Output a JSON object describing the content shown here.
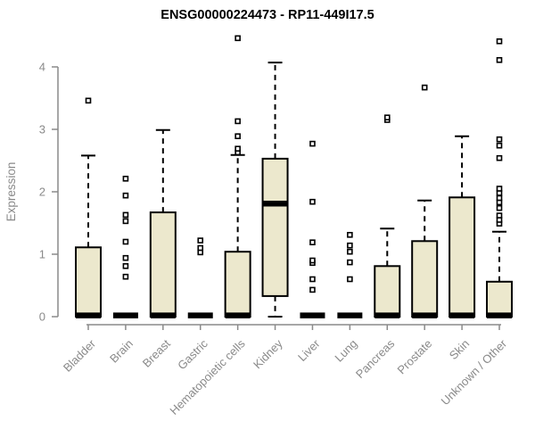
{
  "chart_data": {
    "type": "boxplot",
    "title": "ENSG00000224473 - RP11-449I17.5",
    "ylabel": "Expression",
    "xlabel": "",
    "yticks": [
      0,
      1,
      2,
      3,
      4
    ],
    "ylim": [
      0,
      4.6
    ],
    "grid": false,
    "legend": "none",
    "colors": {
      "box_fill": "#ECE8CD",
      "stroke": "#000000",
      "axis": "#8a8a8a",
      "title": "#000000",
      "background": "#ffffff"
    },
    "categories": [
      "Bladder",
      "Brain",
      "Breast",
      "Gastric",
      "Hematopoietic cells",
      "Kidney",
      "Liver",
      "Lung",
      "Pancreas",
      "Prostate",
      "Skin",
      "Unknown / Other"
    ],
    "series": [
      {
        "low": 0,
        "q1": 0,
        "med": 0.02,
        "q3": 1.11,
        "high": 2.58,
        "outliers": [
          3.46
        ]
      },
      {
        "low": 0,
        "q1": 0,
        "med": 0.02,
        "q3": 0.03,
        "high": 0.03,
        "outliers": [
          0.64,
          0.81,
          0.94,
          1.2,
          1.53,
          1.63,
          1.94,
          2.21
        ]
      },
      {
        "low": 0,
        "q1": 0,
        "med": 0.02,
        "q3": 1.67,
        "high": 2.99,
        "outliers": []
      },
      {
        "low": 0,
        "q1": 0,
        "med": 0.02,
        "q3": 0.03,
        "high": 0.03,
        "outliers": [
          1.03,
          1.1,
          1.22
        ]
      },
      {
        "low": 0,
        "q1": 0,
        "med": 0.02,
        "q3": 1.04,
        "high": 2.59,
        "outliers": [
          2.63,
          2.69,
          2.89,
          3.13,
          4.46
        ]
      },
      {
        "low": 0,
        "q1": 0.33,
        "med": 1.81,
        "q3": 2.53,
        "high": 4.07,
        "outliers": []
      },
      {
        "low": 0,
        "q1": 0,
        "med": 0.02,
        "q3": 0.03,
        "high": 0.03,
        "outliers": [
          0.43,
          0.6,
          0.86,
          0.9,
          1.19,
          1.84,
          2.77
        ]
      },
      {
        "low": 0,
        "q1": 0,
        "med": 0.02,
        "q3": 0.03,
        "high": 0.03,
        "outliers": [
          0.6,
          0.87,
          1.04,
          1.14,
          1.31
        ]
      },
      {
        "low": 0,
        "q1": 0,
        "med": 0.02,
        "q3": 0.81,
        "high": 1.41,
        "outliers": [
          3.15,
          3.19
        ]
      },
      {
        "low": 0,
        "q1": 0,
        "med": 0.02,
        "q3": 1.21,
        "high": 1.86,
        "outliers": [
          3.67
        ]
      },
      {
        "low": 0,
        "q1": 0,
        "med": 0.02,
        "q3": 1.91,
        "high": 2.89,
        "outliers": []
      },
      {
        "low": 0,
        "q1": 0,
        "med": 0.02,
        "q3": 0.56,
        "high": 1.36,
        "outliers": [
          1.49,
          1.55,
          1.62,
          1.74,
          1.83,
          1.9,
          1.98,
          2.05,
          2.54,
          2.74,
          2.84,
          4.11,
          4.41
        ]
      }
    ]
  }
}
